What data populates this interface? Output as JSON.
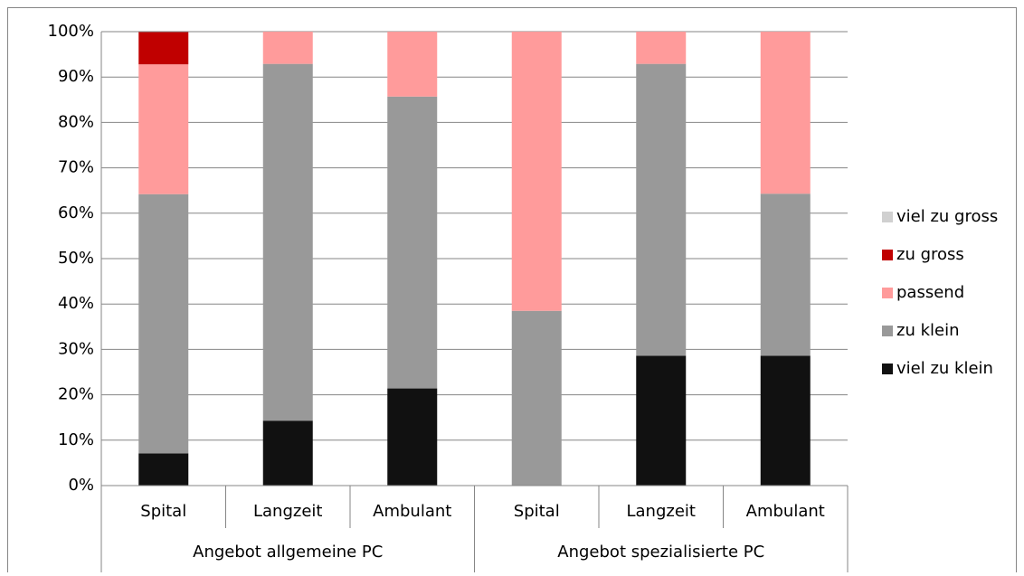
{
  "chart_data": {
    "type": "stacked_bar",
    "categories": [
      "Spital",
      "Langzeit",
      "Ambulant",
      "Spital",
      "Langzeit",
      "Ambulant"
    ],
    "groups": [
      "Angebot allgemeine PC",
      "Angebot spezialisierte PC"
    ],
    "series": [
      {
        "name": "viel zu klein",
        "color": "#111111",
        "values": [
          7.1,
          14.3,
          21.4,
          0,
          28.6,
          28.6
        ]
      },
      {
        "name": "zu klein",
        "color": "#999999",
        "values": [
          57.1,
          78.6,
          64.3,
          38.5,
          64.3,
          35.7
        ]
      },
      {
        "name": "passend",
        "color": "#ff9b9b",
        "values": [
          28.6,
          7.1,
          14.3,
          61.5,
          7.1,
          35.7
        ]
      },
      {
        "name": "zu gross",
        "color": "#c00000",
        "values": [
          7.1,
          0,
          0,
          0,
          0,
          0
        ]
      },
      {
        "name": "viel zu gross",
        "color": "#d0d0d0",
        "values": [
          0,
          0,
          0,
          0,
          0,
          0
        ]
      }
    ],
    "ylim": [
      0,
      100
    ],
    "yticks": [
      {
        "value": 0,
        "label": "0%"
      },
      {
        "value": 10,
        "label": "10%"
      },
      {
        "value": 20,
        "label": "20%"
      },
      {
        "value": 30,
        "label": "30%"
      },
      {
        "value": 40,
        "label": "40%"
      },
      {
        "value": 50,
        "label": "50%"
      },
      {
        "value": 60,
        "label": "60%"
      },
      {
        "value": 70,
        "label": "70%"
      },
      {
        "value": 80,
        "label": "80%"
      },
      {
        "value": 90,
        "label": "90%"
      },
      {
        "value": 100,
        "label": "100%"
      }
    ],
    "grid": true,
    "legend": "right"
  }
}
